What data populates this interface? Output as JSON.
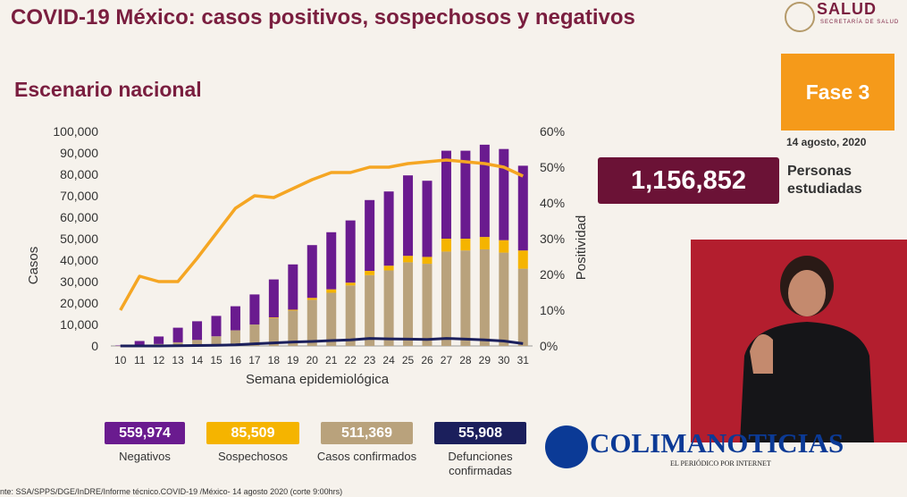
{
  "header": {
    "title": "COVID-19 México: casos positivos, sospechosos y negativos",
    "subtitle": "Escenario nacional",
    "logo_text": "SALUD",
    "logo_sub": "SECRETARÍA DE SALUD"
  },
  "phase": {
    "label": "Fase 3",
    "date": "14 agosto, 2020"
  },
  "total": {
    "value": "1,156,852",
    "label": "Personas estudiadas"
  },
  "stats": [
    {
      "value": "559,974",
      "label": "Negativos",
      "color": "#6a1b8f"
    },
    {
      "value": "85,509",
      "label": "Sospechosos",
      "color": "#f5b400"
    },
    {
      "value": "511,369",
      "label": "Casos confirmados",
      "color": "#b9a27c"
    },
    {
      "value": "55,908",
      "label": "Defunciones confirmadas",
      "color": "#1b1f5c"
    }
  ],
  "brand": {
    "name": "COLIMANOTICIAS",
    "tagline": "EL PERIÓDICO POR INTERNET"
  },
  "source": "nte: SSA/SPPS/DGE/InDRE/Informe técnico.COVID-19 /México- 14 agosto 2020 (corte 9:00hrs)",
  "colors": {
    "negativos": "#6a1b8f",
    "sospechosos": "#f5b400",
    "confirmados": "#b9a27c",
    "defunciones": "#1b1f5c",
    "positividad": "#f5a623"
  },
  "chart_data": {
    "type": "bar",
    "stacked": true,
    "xlabel": "Semana epidemiológica",
    "ylabel": "Casos",
    "y2label": "Positividad",
    "categories": [
      "10",
      "11",
      "12",
      "13",
      "14",
      "15",
      "16",
      "17",
      "18",
      "19",
      "20",
      "21",
      "22",
      "23",
      "24",
      "25",
      "26",
      "27",
      "28",
      "29",
      "30",
      "31"
    ],
    "ylim": [
      0,
      100000
    ],
    "yticks": [
      "0",
      "10,000",
      "20,000",
      "30,000",
      "40,000",
      "50,000",
      "60,000",
      "70,000",
      "80,000",
      "90,000",
      "100,000"
    ],
    "y2lim": [
      0,
      60
    ],
    "y2ticks": [
      "0%",
      "10%",
      "20%",
      "30%",
      "40%",
      "50%",
      "60%"
    ],
    "series": [
      {
        "name": "Casos confirmados",
        "key": "confirmados",
        "values": [
          100,
          400,
          900,
          1700,
          2800,
          4500,
          7300,
          10000,
          13000,
          16500,
          21500,
          24800,
          28200,
          33000,
          35200,
          39000,
          38300,
          44000,
          44500,
          45000,
          43500,
          36000
        ]
      },
      {
        "name": "Sospechosos",
        "key": "sospechosos",
        "values": [
          0,
          0,
          0,
          0,
          0,
          0,
          0,
          0,
          300,
          400,
          900,
          1600,
          1300,
          2000,
          2200,
          3000,
          3200,
          6000,
          5500,
          5800,
          5800,
          8500
        ]
      },
      {
        "name": "Negativos",
        "key": "negativos",
        "values": [
          100,
          1900,
          3500,
          6800,
          8700,
          9500,
          11200,
          14000,
          17700,
          21100,
          24600,
          26600,
          29000,
          33000,
          34600,
          37500,
          35500,
          41000,
          41000,
          43000,
          42500,
          39500
        ]
      }
    ],
    "defunciones": [
      0,
      0,
      0,
      100,
      200,
      300,
      500,
      1000,
      1400,
      1800,
      2100,
      2500,
      2800,
      3500,
      3300,
      3200,
      3000,
      3500,
      3200,
      2800,
      2300,
      1100
    ],
    "positividad": [
      10,
      19.5,
      18,
      18,
      24.5,
      31.5,
      38.5,
      42,
      41.5,
      44,
      46.5,
      48.5,
      48.5,
      50,
      50,
      51,
      51.5,
      52,
      51.5,
      51,
      50,
      47.5
    ]
  }
}
